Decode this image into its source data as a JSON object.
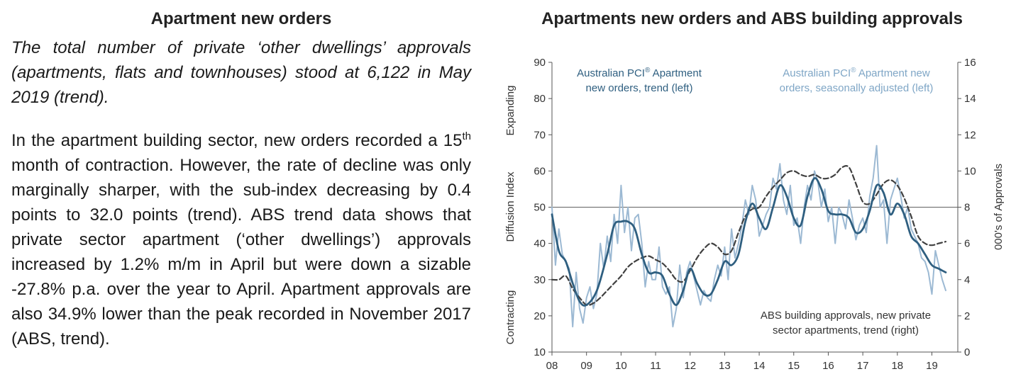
{
  "left_panel": {
    "title": "Apartment new orders",
    "intro": "The total number of private ‘other dwellings’ approvals (apartments, flats and townhouses) stood at 6,122 in May 2019 (trend).",
    "p_before_ordinal": "In the apartment building sector, new orders recorded a 15",
    "p_ordinal_suffix": "th",
    "p_after_ordinal": " month of contraction. However, the rate of decline was only marginally sharper, with the sub-index decreasing by 0.4 points to 32.0 points (trend). ABS trend data shows that private sector apartment (‘other dwellings’) approvals increased by 1.2% m/m in April but were down a sizable -27.8% p.a. over the year to April. Apartment approvals are also 34.9% lower than the peak recorded in November 2017 (ABS, trend)."
  },
  "chart_data": {
    "type": "line",
    "title": "Apartments new orders and ABS building approvals",
    "ylabel_left": "Diffusion Index",
    "ylabel_right": "000's of Approvals",
    "left_top_note": "Expanding",
    "left_bottom_note": "Contracting",
    "xlim": [
      8.0,
      19.75
    ],
    "ylim_left": [
      10,
      90
    ],
    "ylim_right": [
      0,
      16
    ],
    "y_ticks_left": [
      "10",
      "20",
      "30",
      "40",
      "50",
      "60",
      "70",
      "80",
      "90"
    ],
    "y_ticks_right": [
      "0",
      "2",
      "4",
      "6",
      "8",
      "10",
      "12",
      "14",
      "16"
    ],
    "x_ticks": [
      "08",
      "09",
      "10",
      "11",
      "12",
      "13",
      "14",
      "15",
      "16",
      "17",
      "18",
      "19"
    ],
    "reference_line": 50,
    "labels": {
      "trend_line1": "Australian PCI",
      "trend_line1_sup": "®",
      "trend_line1_tail": " Apartment",
      "trend_line2": "new orders, trend (left)",
      "sa_line1": "Australian PCI",
      "sa_line1_sup": "®",
      "sa_line1_tail": " Apartment new",
      "sa_line2": "orders, seasonally adjusted (left)",
      "abs_line1": "ABS building approvals, new private",
      "abs_line2": "sector apartments, trend (right)"
    },
    "series": [
      {
        "name": "Australian PCI® Apartment new orders, trend (left)",
        "axis": "left",
        "color": "#2f5f80",
        "style": "solid",
        "x": [
          8.0,
          8.2,
          8.4,
          8.6,
          8.8,
          9.0,
          9.3,
          9.6,
          9.8,
          10.0,
          10.2,
          10.4,
          10.6,
          10.8,
          11.0,
          11.2,
          11.4,
          11.6,
          11.8,
          12.0,
          12.2,
          12.4,
          12.6,
          12.8,
          13.0,
          13.2,
          13.4,
          13.6,
          13.8,
          14.0,
          14.2,
          14.4,
          14.6,
          14.8,
          15.0,
          15.2,
          15.4,
          15.6,
          15.8,
          16.0,
          16.2,
          16.4,
          16.6,
          16.8,
          17.0,
          17.2,
          17.4,
          17.6,
          17.8,
          18.0,
          18.2,
          18.4,
          18.6,
          18.8,
          19.0,
          19.2,
          19.4
        ],
        "y": [
          48,
          38,
          35,
          29,
          24,
          23,
          27,
          37,
          45,
          46,
          46,
          44,
          37,
          32,
          32,
          31,
          26,
          23,
          27,
          33,
          29,
          26,
          26,
          30,
          35,
          34,
          37,
          46,
          51,
          47,
          44,
          50,
          56,
          53,
          47,
          45,
          53,
          58,
          55,
          49,
          48,
          48,
          47,
          43,
          44,
          49,
          56,
          54,
          48,
          51,
          48,
          42,
          40,
          37,
          34,
          33,
          32
        ]
      },
      {
        "name": "Australian PCI® Apartment new orders, seasonally adjusted (left)",
        "axis": "left",
        "color": "#9cb9d3",
        "style": "solid",
        "x": [
          8.0,
          8.1,
          8.2,
          8.3,
          8.4,
          8.5,
          8.6,
          8.7,
          8.8,
          8.9,
          9.0,
          9.1,
          9.2,
          9.3,
          9.4,
          9.5,
          9.6,
          9.7,
          9.8,
          9.9,
          10.0,
          10.1,
          10.2,
          10.3,
          10.4,
          10.5,
          10.6,
          10.7,
          10.8,
          10.9,
          11.0,
          11.1,
          11.2,
          11.3,
          11.4,
          11.5,
          11.6,
          11.7,
          11.8,
          11.9,
          12.0,
          12.1,
          12.2,
          12.3,
          12.4,
          12.5,
          12.6,
          12.7,
          12.8,
          12.9,
          13.0,
          13.1,
          13.2,
          13.3,
          13.4,
          13.5,
          13.6,
          13.7,
          13.8,
          13.9,
          14.0,
          14.1,
          14.2,
          14.3,
          14.4,
          14.5,
          14.6,
          14.7,
          14.8,
          14.9,
          15.0,
          15.1,
          15.2,
          15.3,
          15.4,
          15.5,
          15.6,
          15.7,
          15.8,
          15.9,
          16.0,
          16.1,
          16.2,
          16.3,
          16.4,
          16.5,
          16.6,
          16.7,
          16.8,
          16.9,
          17.0,
          17.1,
          17.2,
          17.3,
          17.4,
          17.5,
          17.6,
          17.7,
          17.8,
          17.9,
          18.0,
          18.1,
          18.2,
          18.3,
          18.4,
          18.5,
          18.6,
          18.7,
          18.8,
          18.9,
          19.0,
          19.1,
          19.2,
          19.3,
          19.4
        ],
        "y": [
          50,
          34,
          44,
          37,
          35,
          33,
          17,
          32,
          22,
          18,
          25,
          28,
          22,
          26,
          40,
          33,
          42,
          35,
          48,
          40,
          56,
          43,
          50,
          38,
          47,
          48,
          40,
          28,
          35,
          30,
          30,
          39,
          28,
          26,
          28,
          17,
          22,
          34,
          25,
          32,
          35,
          31,
          27,
          23,
          27,
          25,
          24,
          30,
          34,
          31,
          39,
          30,
          44,
          36,
          40,
          45,
          52,
          48,
          56,
          52,
          42,
          45,
          48,
          50,
          58,
          55,
          62,
          52,
          48,
          56,
          45,
          47,
          40,
          50,
          56,
          52,
          60,
          57,
          50,
          55,
          46,
          50,
          40,
          50,
          48,
          44,
          52,
          47,
          41,
          45,
          47,
          43,
          53,
          58,
          67,
          50,
          52,
          40,
          52,
          55,
          58,
          53,
          47,
          50,
          44,
          42,
          40,
          36,
          35,
          32,
          26,
          38,
          34,
          30,
          27
        ]
      },
      {
        "name": "ABS building approvals, new private sector apartments, trend (right)",
        "axis": "right",
        "color": "#404040",
        "style": "dashed",
        "x": [
          8.0,
          8.2,
          8.4,
          8.6,
          8.8,
          9.0,
          9.2,
          9.4,
          9.6,
          9.8,
          10.0,
          10.2,
          10.4,
          10.6,
          10.8,
          11.0,
          11.2,
          11.4,
          11.6,
          11.8,
          12.0,
          12.2,
          12.4,
          12.6,
          12.8,
          13.0,
          13.2,
          13.4,
          13.6,
          13.8,
          14.0,
          14.2,
          14.4,
          14.6,
          14.8,
          15.0,
          15.2,
          15.4,
          15.6,
          15.8,
          16.0,
          16.2,
          16.4,
          16.6,
          16.8,
          17.0,
          17.2,
          17.4,
          17.6,
          17.8,
          18.0,
          18.2,
          18.4,
          18.6,
          18.8,
          19.0,
          19.2,
          19.4
        ],
        "y": [
          4.0,
          4.0,
          4.2,
          3.5,
          3.0,
          2.6,
          2.7,
          3.0,
          3.4,
          3.8,
          4.2,
          4.7,
          5.0,
          5.2,
          5.3,
          5.1,
          4.9,
          4.5,
          4.0,
          3.9,
          4.5,
          5.2,
          5.7,
          6.0,
          5.8,
          5.4,
          5.6,
          6.6,
          7.5,
          7.9,
          8.0,
          8.6,
          9.1,
          9.5,
          9.9,
          10.0,
          9.8,
          9.7,
          9.8,
          9.6,
          9.6,
          9.8,
          10.2,
          10.2,
          9.3,
          8.3,
          8.2,
          8.7,
          9.3,
          9.5,
          9.2,
          8.5,
          7.5,
          6.4,
          6.0,
          5.9,
          6.0,
          6.1
        ]
      }
    ]
  }
}
